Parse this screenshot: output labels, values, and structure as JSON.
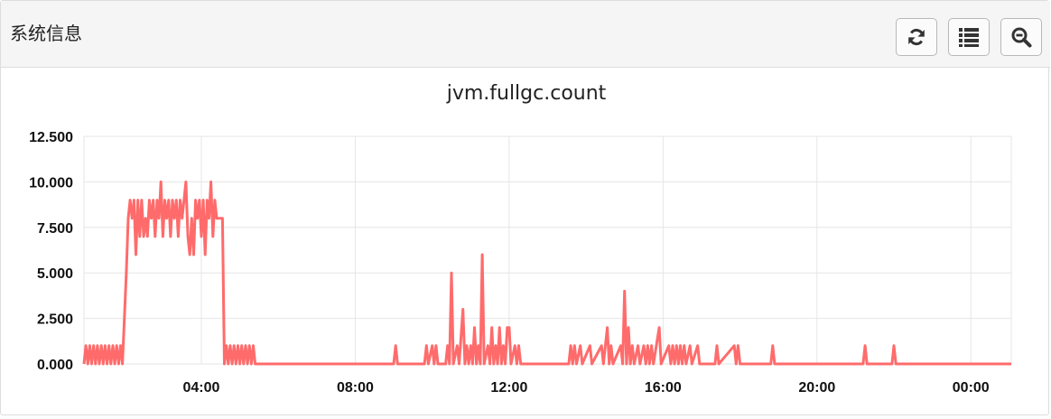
{
  "panel": {
    "title": "系统信息",
    "buttons": [
      {
        "name": "refresh-button",
        "icon": "refresh-icon"
      },
      {
        "name": "list-button",
        "icon": "list-icon"
      },
      {
        "name": "zoom-button",
        "icon": "zoom-search-icon"
      }
    ]
  },
  "chart_data": {
    "type": "line",
    "title": "jvm.fullgc.count",
    "xlabel": "",
    "ylabel": "",
    "x_unit": "hours since start of axis (tick labels are clock time)",
    "xlim": [
      0.95,
      25.05
    ],
    "ylim": [
      0,
      12.5
    ],
    "x_ticks": [
      {
        "x": 4,
        "label": "04:00"
      },
      {
        "x": 8,
        "label": "08:00"
      },
      {
        "x": 12,
        "label": "12:00"
      },
      {
        "x": 16,
        "label": "16:00"
      },
      {
        "x": 20,
        "label": "20:00"
      },
      {
        "x": 24,
        "label": "00:00"
      }
    ],
    "y_ticks": [
      {
        "y": 0,
        "label": "0.000"
      },
      {
        "y": 2.5,
        "label": "2.500"
      },
      {
        "y": 5,
        "label": "5.000"
      },
      {
        "y": 7.5,
        "label": "7.500"
      },
      {
        "y": 10,
        "label": "10.000"
      },
      {
        "y": 12.5,
        "label": "12.500"
      }
    ],
    "grid": true,
    "legend": "none",
    "color": "#ff6b6b",
    "series": [
      {
        "values": [
          [
            0.95,
            0
          ],
          [
            1.0,
            1
          ],
          [
            1.05,
            0
          ],
          [
            1.1,
            1
          ],
          [
            1.15,
            0
          ],
          [
            1.2,
            1
          ],
          [
            1.25,
            0
          ],
          [
            1.3,
            1
          ],
          [
            1.35,
            0
          ],
          [
            1.4,
            1
          ],
          [
            1.45,
            0
          ],
          [
            1.5,
            1
          ],
          [
            1.55,
            0
          ],
          [
            1.6,
            1
          ],
          [
            1.65,
            0
          ],
          [
            1.7,
            1
          ],
          [
            1.75,
            0
          ],
          [
            1.8,
            1
          ],
          [
            1.85,
            0
          ],
          [
            1.9,
            1
          ],
          [
            1.95,
            0
          ],
          [
            2.05,
            5
          ],
          [
            2.1,
            8
          ],
          [
            2.15,
            9
          ],
          [
            2.2,
            8
          ],
          [
            2.25,
            9
          ],
          [
            2.3,
            6
          ],
          [
            2.35,
            9
          ],
          [
            2.4,
            7
          ],
          [
            2.45,
            9
          ],
          [
            2.5,
            7
          ],
          [
            2.55,
            8
          ],
          [
            2.6,
            7
          ],
          [
            2.65,
            9
          ],
          [
            2.7,
            8
          ],
          [
            2.75,
            9
          ],
          [
            2.8,
            7
          ],
          [
            2.85,
            9
          ],
          [
            2.9,
            8
          ],
          [
            2.95,
            10
          ],
          [
            3.0,
            7
          ],
          [
            3.05,
            9
          ],
          [
            3.1,
            8
          ],
          [
            3.15,
            9
          ],
          [
            3.2,
            7
          ],
          [
            3.25,
            9
          ],
          [
            3.3,
            8
          ],
          [
            3.35,
            9
          ],
          [
            3.4,
            7
          ],
          [
            3.45,
            9
          ],
          [
            3.5,
            8
          ],
          [
            3.55,
            9
          ],
          [
            3.6,
            10
          ],
          [
            3.65,
            7
          ],
          [
            3.7,
            6
          ],
          [
            3.75,
            8
          ],
          [
            3.8,
            6
          ],
          [
            3.85,
            9
          ],
          [
            3.9,
            8
          ],
          [
            3.95,
            9
          ],
          [
            4.0,
            7
          ],
          [
            4.05,
            9
          ],
          [
            4.1,
            6
          ],
          [
            4.15,
            9
          ],
          [
            4.2,
            8
          ],
          [
            4.25,
            10
          ],
          [
            4.3,
            7
          ],
          [
            4.35,
            9
          ],
          [
            4.4,
            8
          ],
          [
            4.45,
            8
          ],
          [
            4.55,
            8
          ],
          [
            4.6,
            0
          ],
          [
            4.65,
            1
          ],
          [
            4.7,
            0
          ],
          [
            4.75,
            1
          ],
          [
            4.8,
            0
          ],
          [
            4.85,
            1
          ],
          [
            4.9,
            0
          ],
          [
            4.95,
            1
          ],
          [
            5.0,
            0
          ],
          [
            5.05,
            1
          ],
          [
            5.1,
            0
          ],
          [
            5.15,
            1
          ],
          [
            5.2,
            0
          ],
          [
            5.25,
            1
          ],
          [
            5.3,
            0
          ],
          [
            5.35,
            1
          ],
          [
            5.4,
            0
          ],
          [
            9.0,
            0
          ],
          [
            9.05,
            1
          ],
          [
            9.1,
            0
          ],
          [
            9.8,
            0
          ],
          [
            9.85,
            1
          ],
          [
            9.9,
            0
          ],
          [
            10.0,
            1
          ],
          [
            10.05,
            0
          ],
          [
            10.1,
            1
          ],
          [
            10.15,
            0
          ],
          [
            10.35,
            0
          ],
          [
            10.4,
            1
          ],
          [
            10.45,
            0
          ],
          [
            10.5,
            5
          ],
          [
            10.55,
            0
          ],
          [
            10.65,
            1
          ],
          [
            10.7,
            0
          ],
          [
            10.8,
            3
          ],
          [
            10.85,
            0
          ],
          [
            10.9,
            1
          ],
          [
            10.95,
            0
          ],
          [
            11.0,
            1
          ],
          [
            11.05,
            0
          ],
          [
            11.1,
            2
          ],
          [
            11.15,
            0
          ],
          [
            11.2,
            1
          ],
          [
            11.25,
            0
          ],
          [
            11.3,
            6
          ],
          [
            11.35,
            0
          ],
          [
            11.45,
            1
          ],
          [
            11.5,
            0
          ],
          [
            11.55,
            2
          ],
          [
            11.6,
            0
          ],
          [
            11.65,
            1
          ],
          [
            11.7,
            0
          ],
          [
            11.75,
            2
          ],
          [
            11.8,
            0
          ],
          [
            11.85,
            1
          ],
          [
            11.9,
            0
          ],
          [
            11.95,
            2
          ],
          [
            12.0,
            2
          ],
          [
            12.05,
            0
          ],
          [
            12.15,
            1
          ],
          [
            12.2,
            0
          ],
          [
            12.25,
            1
          ],
          [
            12.3,
            0
          ],
          [
            13.55,
            0
          ],
          [
            13.6,
            1
          ],
          [
            13.65,
            0
          ],
          [
            13.7,
            1
          ],
          [
            13.75,
            0
          ],
          [
            13.85,
            1
          ],
          [
            13.9,
            0
          ],
          [
            14.1,
            1
          ],
          [
            14.15,
            0
          ],
          [
            14.4,
            1
          ],
          [
            14.45,
            0
          ],
          [
            14.55,
            2
          ],
          [
            14.6,
            0
          ],
          [
            14.65,
            1
          ],
          [
            14.7,
            0
          ],
          [
            14.9,
            1
          ],
          [
            14.95,
            0
          ],
          [
            15.0,
            4
          ],
          [
            15.05,
            0
          ],
          [
            15.1,
            2
          ],
          [
            15.15,
            0
          ],
          [
            15.2,
            1
          ],
          [
            15.25,
            0
          ],
          [
            15.35,
            1
          ],
          [
            15.4,
            0
          ],
          [
            15.5,
            1
          ],
          [
            15.55,
            0
          ],
          [
            15.6,
            1
          ],
          [
            15.65,
            0
          ],
          [
            15.7,
            1
          ],
          [
            15.75,
            0
          ],
          [
            15.9,
            2
          ],
          [
            15.95,
            0
          ],
          [
            16.15,
            1
          ],
          [
            16.2,
            0
          ],
          [
            16.25,
            1
          ],
          [
            16.3,
            0
          ],
          [
            16.35,
            1
          ],
          [
            16.4,
            0
          ],
          [
            16.45,
            1
          ],
          [
            16.5,
            0
          ],
          [
            16.55,
            1
          ],
          [
            16.6,
            0
          ],
          [
            16.7,
            1
          ],
          [
            16.75,
            0
          ],
          [
            16.9,
            1
          ],
          [
            16.95,
            0
          ],
          [
            17.35,
            0
          ],
          [
            17.4,
            1
          ],
          [
            17.45,
            0
          ],
          [
            17.85,
            1
          ],
          [
            17.9,
            0
          ],
          [
            17.95,
            1
          ],
          [
            18.0,
            0
          ],
          [
            18.8,
            0
          ],
          [
            18.85,
            1
          ],
          [
            18.9,
            0
          ],
          [
            21.2,
            0
          ],
          [
            21.25,
            1
          ],
          [
            21.3,
            0
          ],
          [
            21.95,
            0
          ],
          [
            22.0,
            1
          ],
          [
            22.05,
            0
          ],
          [
            25.05,
            0
          ]
        ]
      }
    ]
  }
}
